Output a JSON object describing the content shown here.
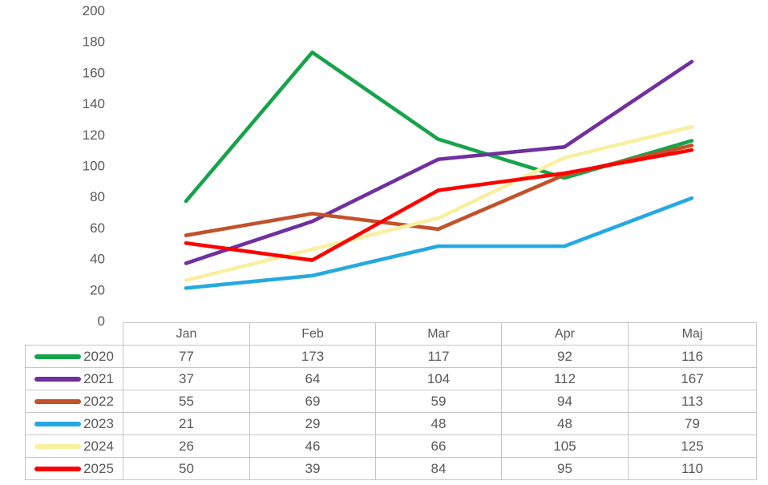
{
  "chart_data": {
    "type": "line",
    "categories": [
      "Jan",
      "Feb",
      "Mar",
      "Apr",
      "Maj"
    ],
    "series": [
      {
        "name": "2020",
        "color": "#16A34A",
        "values": [
          77,
          173,
          117,
          92,
          116
        ]
      },
      {
        "name": "2021",
        "color": "#7030A0",
        "values": [
          37,
          64,
          104,
          112,
          167
        ]
      },
      {
        "name": "2022",
        "color": "#C1522B",
        "values": [
          55,
          69,
          59,
          94,
          113
        ]
      },
      {
        "name": "2023",
        "color": "#26A9E0",
        "values": [
          21,
          29,
          48,
          48,
          79
        ]
      },
      {
        "name": "2024",
        "color": "#F8F0A0",
        "values": [
          26,
          46,
          66,
          105,
          125
        ]
      },
      {
        "name": "2025",
        "color": "#FE0000",
        "values": [
          50,
          39,
          84,
          95,
          110
        ]
      }
    ],
    "title": "",
    "xlabel": "",
    "ylabel": "",
    "ylim": [
      0,
      200
    ],
    "yticks": [
      0,
      20,
      40,
      60,
      80,
      100,
      120,
      140,
      160,
      180,
      200
    ],
    "grid": false,
    "axis_lines": false,
    "legend_position": "table-left",
    "data_table_shown": true
  },
  "styles": {
    "text_color": "#595959",
    "table_border_color": "#C6C6C6",
    "background": "#FFFFFF"
  }
}
